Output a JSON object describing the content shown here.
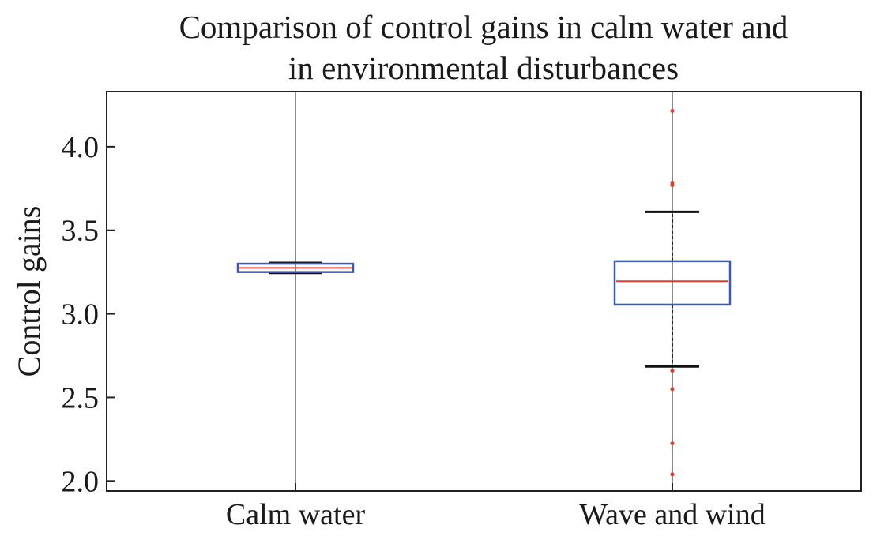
{
  "chart_data": {
    "type": "boxplot",
    "title": "Comparison of control gains in calm water and in environmental disturbances",
    "title_lines": [
      "Comparison of control gains in calm water and",
      "in environmental disturbances"
    ],
    "xlabel": "",
    "ylabel": "Control gains",
    "ylim": [
      1.94,
      4.33
    ],
    "yticks": [
      2.0,
      2.5,
      3.0,
      3.5,
      4.0
    ],
    "ytick_labels": [
      "2.0",
      "2.5",
      "3.0",
      "3.5",
      "4.0"
    ],
    "categories": [
      "Calm water",
      "Wave and wind"
    ],
    "series": [
      {
        "name": "Calm water",
        "whisker_low": 3.245,
        "q1": 3.25,
        "median": 3.275,
        "q3": 3.3,
        "whisker_high": 3.305,
        "outliers": []
      },
      {
        "name": "Wave and wind",
        "whisker_low": 2.685,
        "q1": 3.055,
        "median": 3.195,
        "q3": 3.315,
        "whisker_high": 3.61,
        "outliers": [
          2.04,
          2.225,
          2.55,
          2.66,
          3.77,
          3.785,
          4.215
        ]
      }
    ],
    "colors": {
      "box": "#3a5bb5",
      "median": "#e83a2c",
      "whisker_cap": "#111111",
      "outlier": "#e83a2c",
      "center_line": "#8a8a8a",
      "frame": "#222222"
    }
  }
}
